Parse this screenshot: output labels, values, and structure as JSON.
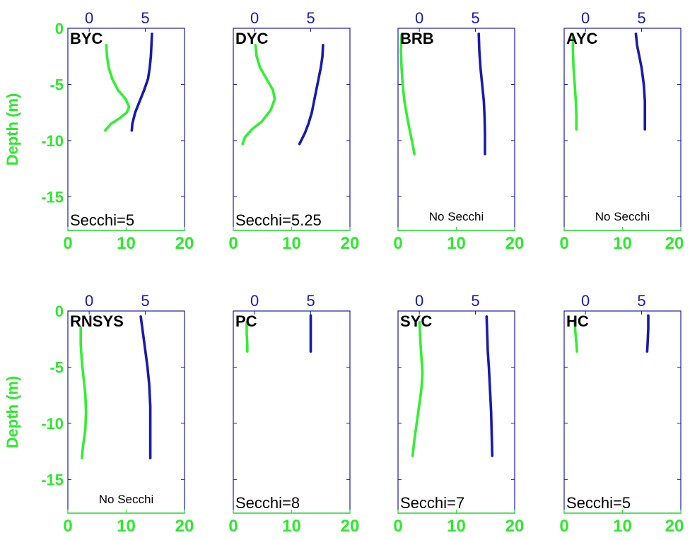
{
  "colors": {
    "chlorophyll": "#33ee33",
    "second_profile": "#1a1aa8",
    "frame": "#1a1aa8",
    "bottom_axis": "#2ee82e"
  },
  "chart_data": {
    "type": "line",
    "layout": "2 rows x 4 columns of depth-profile panels",
    "ylabel": "Depth (m)",
    "ylim": [
      -18,
      0
    ],
    "yticks": [
      0,
      -5,
      -10,
      -15
    ],
    "x_bottom": {
      "lim": [
        0,
        20
      ],
      "ticks": [
        0,
        10,
        20
      ]
    },
    "x_top": {
      "lim": [
        -1.9,
        8.5
      ],
      "ticks": [
        0,
        5
      ]
    },
    "panels": [
      {
        "site": "BYC",
        "secchi": "Secchi=5",
        "green": {
          "x": [
            6.6,
            6.7,
            7.0,
            7.6,
            8.6,
            9.9,
            10.5,
            10.1,
            8.9,
            7.4,
            6.4
          ],
          "depth": [
            -1.5,
            -2.5,
            -3.5,
            -4.5,
            -5.5,
            -6.3,
            -7.0,
            -7.5,
            -8.0,
            -8.5,
            -9.1
          ]
        },
        "blue": {
          "x": [
            5.6,
            5.55,
            5.5,
            5.4,
            5.25,
            4.9,
            4.5,
            4.1,
            3.85,
            3.8
          ],
          "depth": [
            -0.5,
            -1.5,
            -2.5,
            -3.5,
            -4.5,
            -5.5,
            -6.5,
            -7.5,
            -8.5,
            -9.1
          ]
        }
      },
      {
        "site": "DYC",
        "secchi": "Secchi=5.25",
        "green": {
          "x": [
            3.8,
            4.0,
            4.6,
            5.7,
            6.8,
            7.1,
            6.4,
            4.9,
            3.2,
            2.0,
            1.6
          ],
          "depth": [
            -1.5,
            -2.5,
            -3.5,
            -4.5,
            -5.5,
            -6.3,
            -7.3,
            -8.3,
            -9.0,
            -9.7,
            -10.3
          ]
        },
        "blue": {
          "x": [
            6.1,
            6.05,
            5.9,
            5.7,
            5.5,
            5.3,
            5.1,
            4.8,
            4.5,
            4.2,
            4.0
          ],
          "depth": [
            -1.5,
            -2.5,
            -3.5,
            -4.5,
            -5.5,
            -6.5,
            -7.5,
            -8.5,
            -9.3,
            -9.9,
            -10.3
          ]
        }
      },
      {
        "site": "BRB",
        "secchi": "No Secchi",
        "green": {
          "x": [
            0.6,
            0.5,
            0.6,
            0.8,
            1.1,
            1.6,
            2.1,
            2.5,
            2.8
          ],
          "depth": [
            -0.6,
            -2.0,
            -3.5,
            -5.0,
            -6.5,
            -8.0,
            -9.3,
            -10.3,
            -11.2
          ]
        },
        "blue": {
          "x": [
            5.3,
            5.35,
            5.45,
            5.6,
            5.75,
            5.82,
            5.85,
            5.85
          ],
          "depth": [
            -0.5,
            -2.0,
            -3.5,
            -5.0,
            -6.5,
            -8.0,
            -9.5,
            -11.2
          ]
        }
      },
      {
        "site": "AYC",
        "secchi": "No Secchi",
        "green": {
          "x": [
            1.5,
            1.5,
            1.6,
            1.8,
            2.0,
            2.1,
            2.1
          ],
          "depth": [
            -0.6,
            -2.0,
            -3.5,
            -5.0,
            -6.5,
            -7.8,
            -9.0
          ]
        },
        "blue": {
          "x": [
            4.5,
            4.6,
            4.8,
            5.0,
            5.2,
            5.3,
            5.3,
            5.3
          ],
          "depth": [
            -0.5,
            -1.5,
            -2.5,
            -3.5,
            -5.0,
            -6.5,
            -7.8,
            -9.0
          ]
        }
      },
      {
        "site": "RNSYS",
        "secchi": "No Secchi",
        "green": {
          "x": [
            2.2,
            2.2,
            2.4,
            2.7,
            3.0,
            3.1,
            3.0,
            2.6,
            2.4
          ],
          "depth": [
            -1.5,
            -3.0,
            -4.5,
            -6.0,
            -7.5,
            -9.0,
            -10.5,
            -12.0,
            -13.1
          ]
        },
        "blue": {
          "x": [
            4.6,
            4.8,
            5.0,
            5.2,
            5.35,
            5.45,
            5.45,
            5.45
          ],
          "depth": [
            -0.5,
            -2.0,
            -3.5,
            -5.0,
            -6.5,
            -8.5,
            -10.5,
            -13.1
          ]
        }
      },
      {
        "site": "PC",
        "secchi": "Secchi=8",
        "green": {
          "x": [
            2.3,
            2.3,
            2.4,
            2.4
          ],
          "depth": [
            -1.0,
            -2.0,
            -3.0,
            -3.6
          ]
        },
        "blue": {
          "x": [
            5.0,
            5.0,
            5.0,
            5.0
          ],
          "depth": [
            -0.4,
            -1.5,
            -2.7,
            -3.6
          ]
        }
      },
      {
        "site": "SYC",
        "secchi": "Secchi=7",
        "green": {
          "x": [
            3.7,
            3.8,
            4.0,
            4.2,
            4.0,
            3.6,
            3.2,
            2.8,
            2.5
          ],
          "depth": [
            -1.0,
            -2.5,
            -4.0,
            -5.5,
            -7.0,
            -8.5,
            -10.0,
            -11.5,
            -12.9
          ]
        },
        "blue": {
          "x": [
            6.0,
            6.05,
            6.1,
            6.2,
            6.3,
            6.4,
            6.45,
            6.5
          ],
          "depth": [
            -0.5,
            -2.0,
            -3.5,
            -5.0,
            -7.0,
            -9.0,
            -11.0,
            -12.9
          ]
        }
      },
      {
        "site": "HC",
        "secchi": "Secchi=5",
        "green": {
          "x": [
            1.8,
            1.9,
            2.1,
            2.2
          ],
          "depth": [
            -0.8,
            -1.8,
            -2.8,
            -3.6
          ]
        },
        "blue": {
          "x": [
            5.6,
            5.6,
            5.55,
            5.5
          ],
          "depth": [
            -0.4,
            -1.5,
            -2.7,
            -3.6
          ]
        }
      }
    ]
  }
}
